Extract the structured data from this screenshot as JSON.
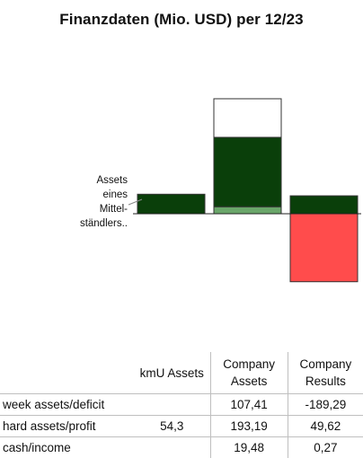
{
  "chart_data": {
    "type": "bar",
    "title": "Finanzdaten (Mio. USD) per 12/23",
    "annotation": [
      "Assets",
      "eines",
      "Mittel-",
      "ständlers.."
    ],
    "colors": {
      "week": "#ffffff",
      "hard_assets": "#0a3f0a",
      "cash": "#6aa66a",
      "profit": "#0a3f0a",
      "deficit": "#ff4c4c",
      "outline": "#333333"
    },
    "categories": [
      "kmU Assets",
      "Company Assets",
      "Company Results"
    ],
    "series": [
      {
        "name": "week assets/deficit",
        "values": [
          null,
          107.41,
          -189.29
        ]
      },
      {
        "name": "hard assets/profit",
        "values": [
          54.3,
          193.19,
          49.62
        ]
      },
      {
        "name": "cash/income",
        "values": [
          null,
          19.48,
          0.27
        ]
      }
    ]
  },
  "table": {
    "headers": [
      "",
      "kmU Assets",
      "Company Assets",
      "Company Results"
    ],
    "rows": [
      {
        "label": "week assets/deficit",
        "cells": [
          "",
          "107,41",
          "-189,29"
        ]
      },
      {
        "label": "hard assets/profit",
        "cells": [
          "54,3",
          "193,19",
          "49,62"
        ]
      },
      {
        "label": "cash/income",
        "cells": [
          "",
          "19,48",
          "0,27"
        ]
      }
    ]
  }
}
